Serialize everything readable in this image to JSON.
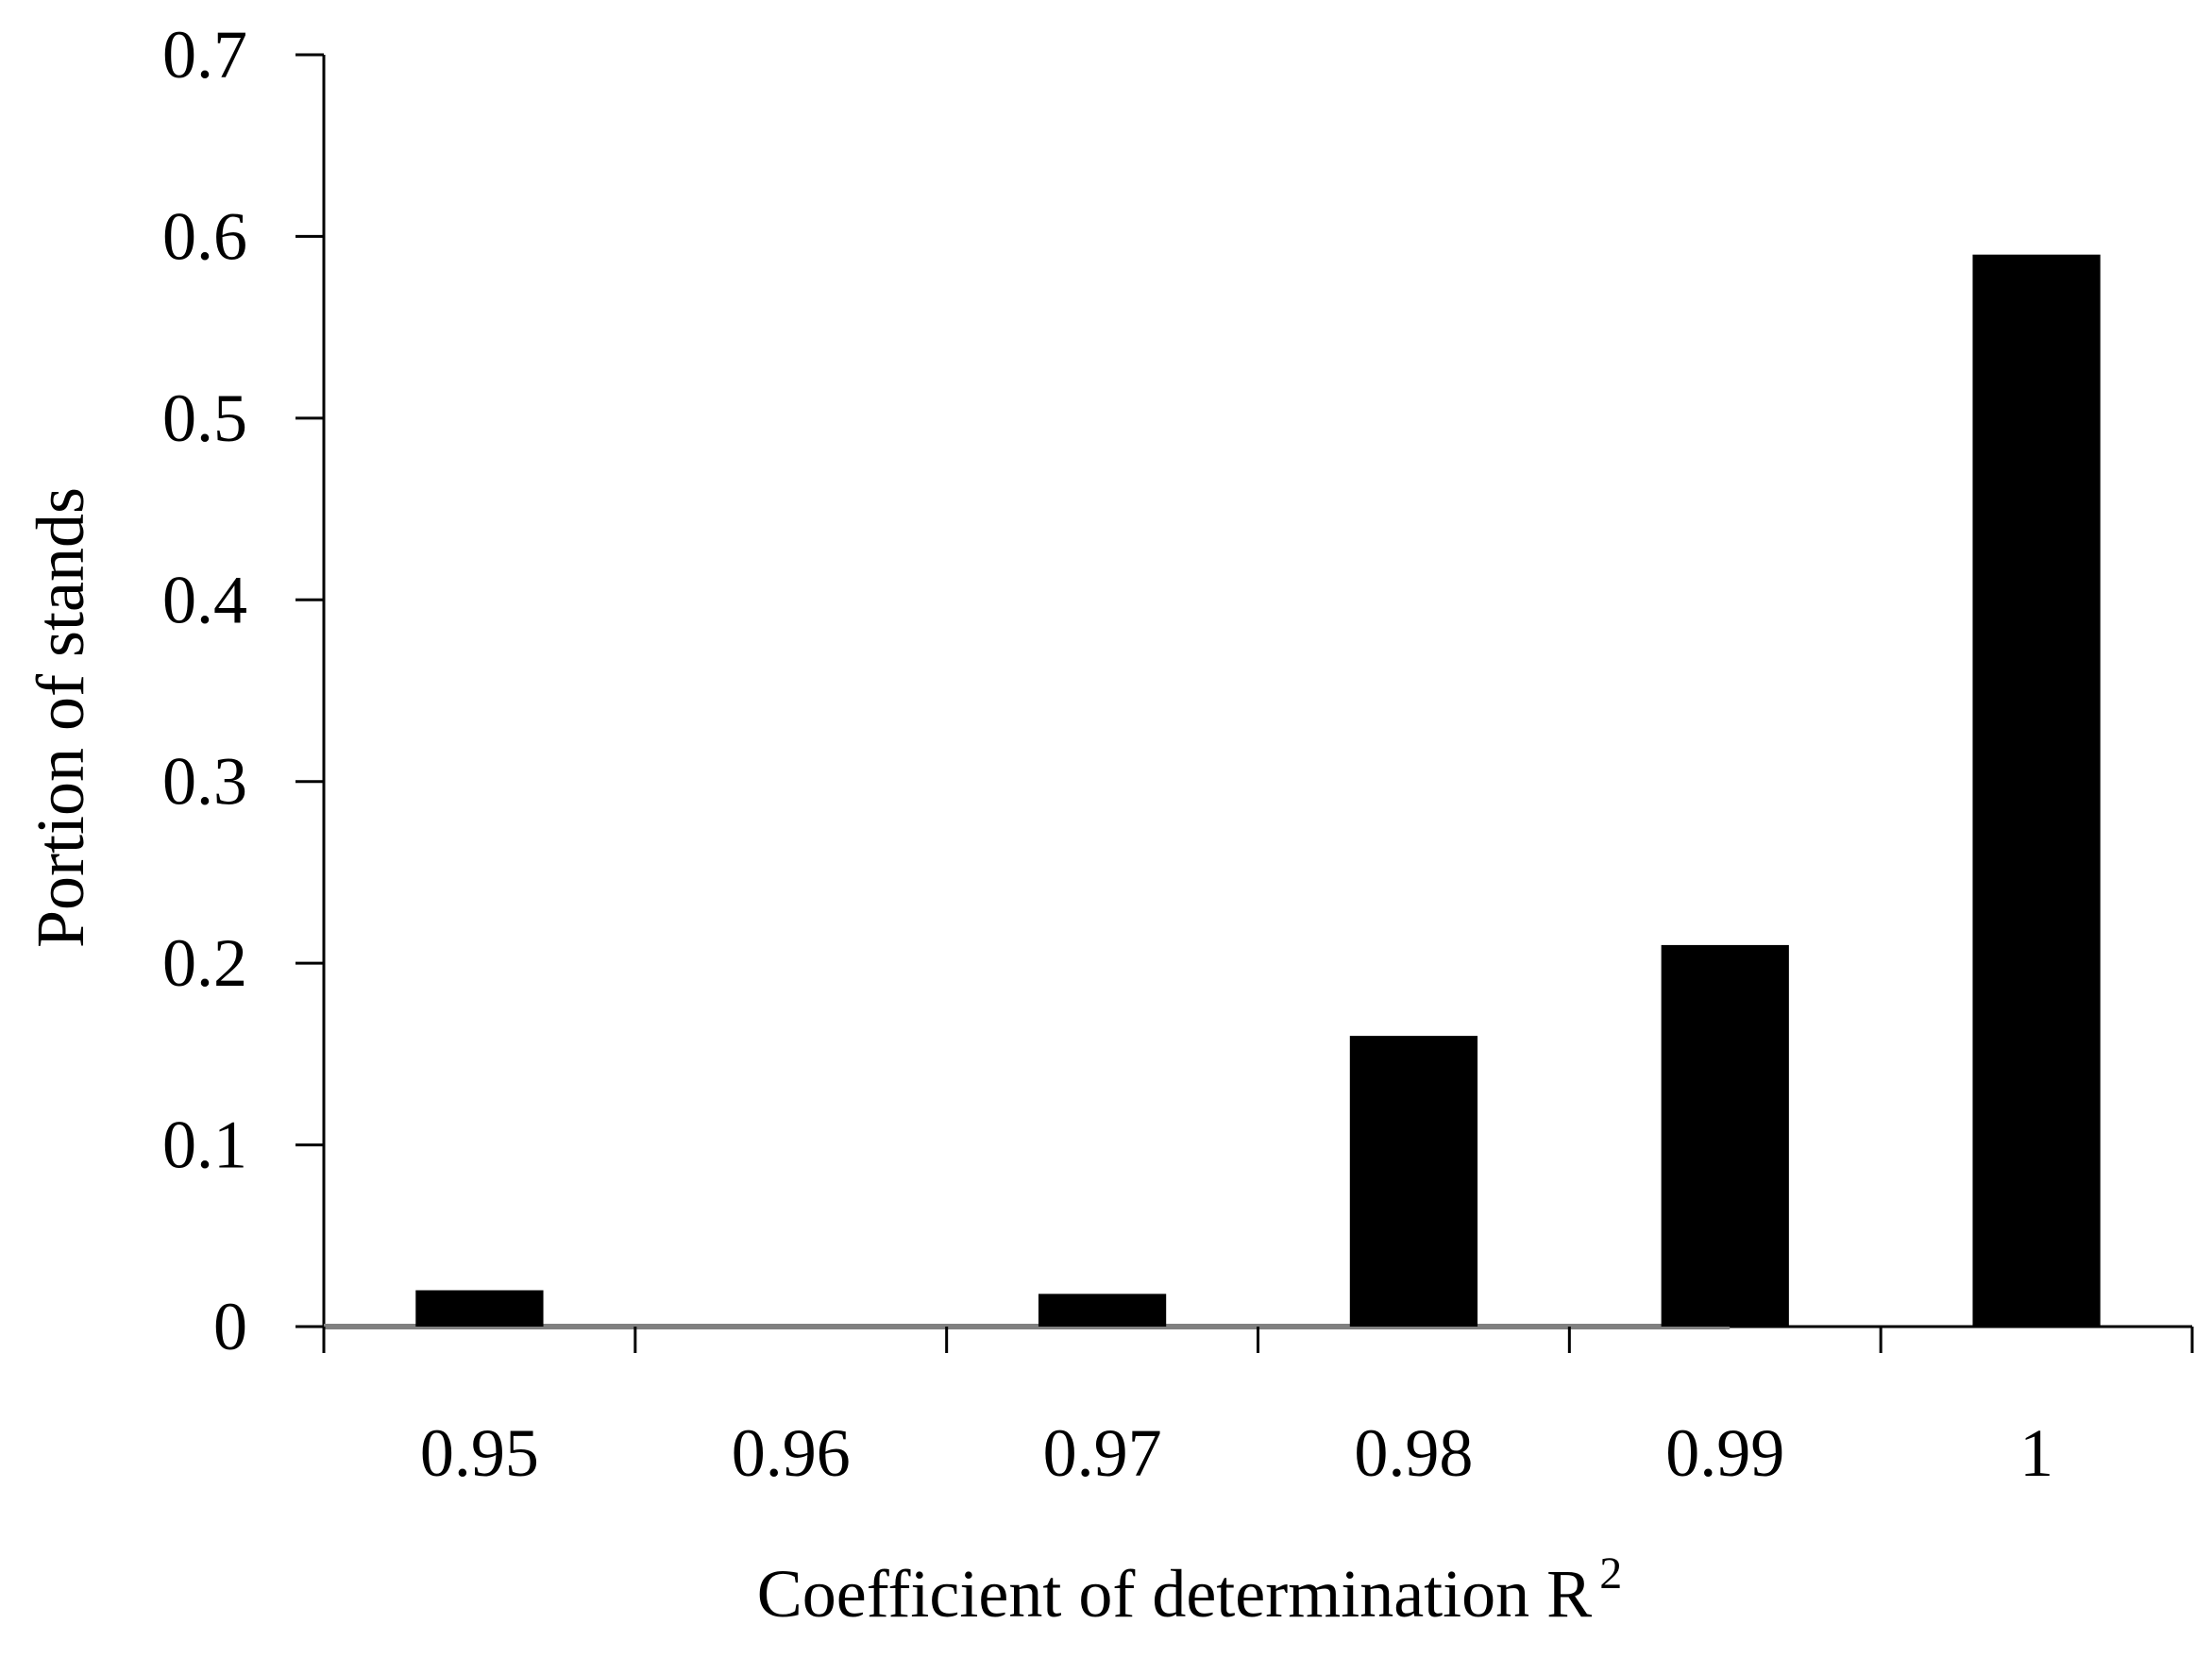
{
  "chart_data": {
    "type": "bar",
    "title": "",
    "xlabel": "Coefficient of determination R",
    "xlabel_superscript": "2",
    "ylabel": "Portion of stands",
    "categories": [
      "0.95",
      "0.96",
      "0.97",
      "0.98",
      "0.99",
      "1"
    ],
    "values": [
      0.02,
      0.0,
      0.018,
      0.16,
      0.21,
      0.59
    ],
    "ylim": [
      0,
      0.7
    ],
    "yticks": [
      0,
      0.1,
      0.2,
      0.3,
      0.4,
      0.5,
      0.6,
      0.7
    ],
    "ytick_labels": [
      "0",
      "0.1",
      "0.2",
      "0.3",
      "0.4",
      "0.5",
      "0.6",
      "0.7"
    ],
    "grid": false,
    "legend": "none",
    "bar_color": "#000000",
    "axis_color": "#000000",
    "baseline_color": "#808080"
  }
}
